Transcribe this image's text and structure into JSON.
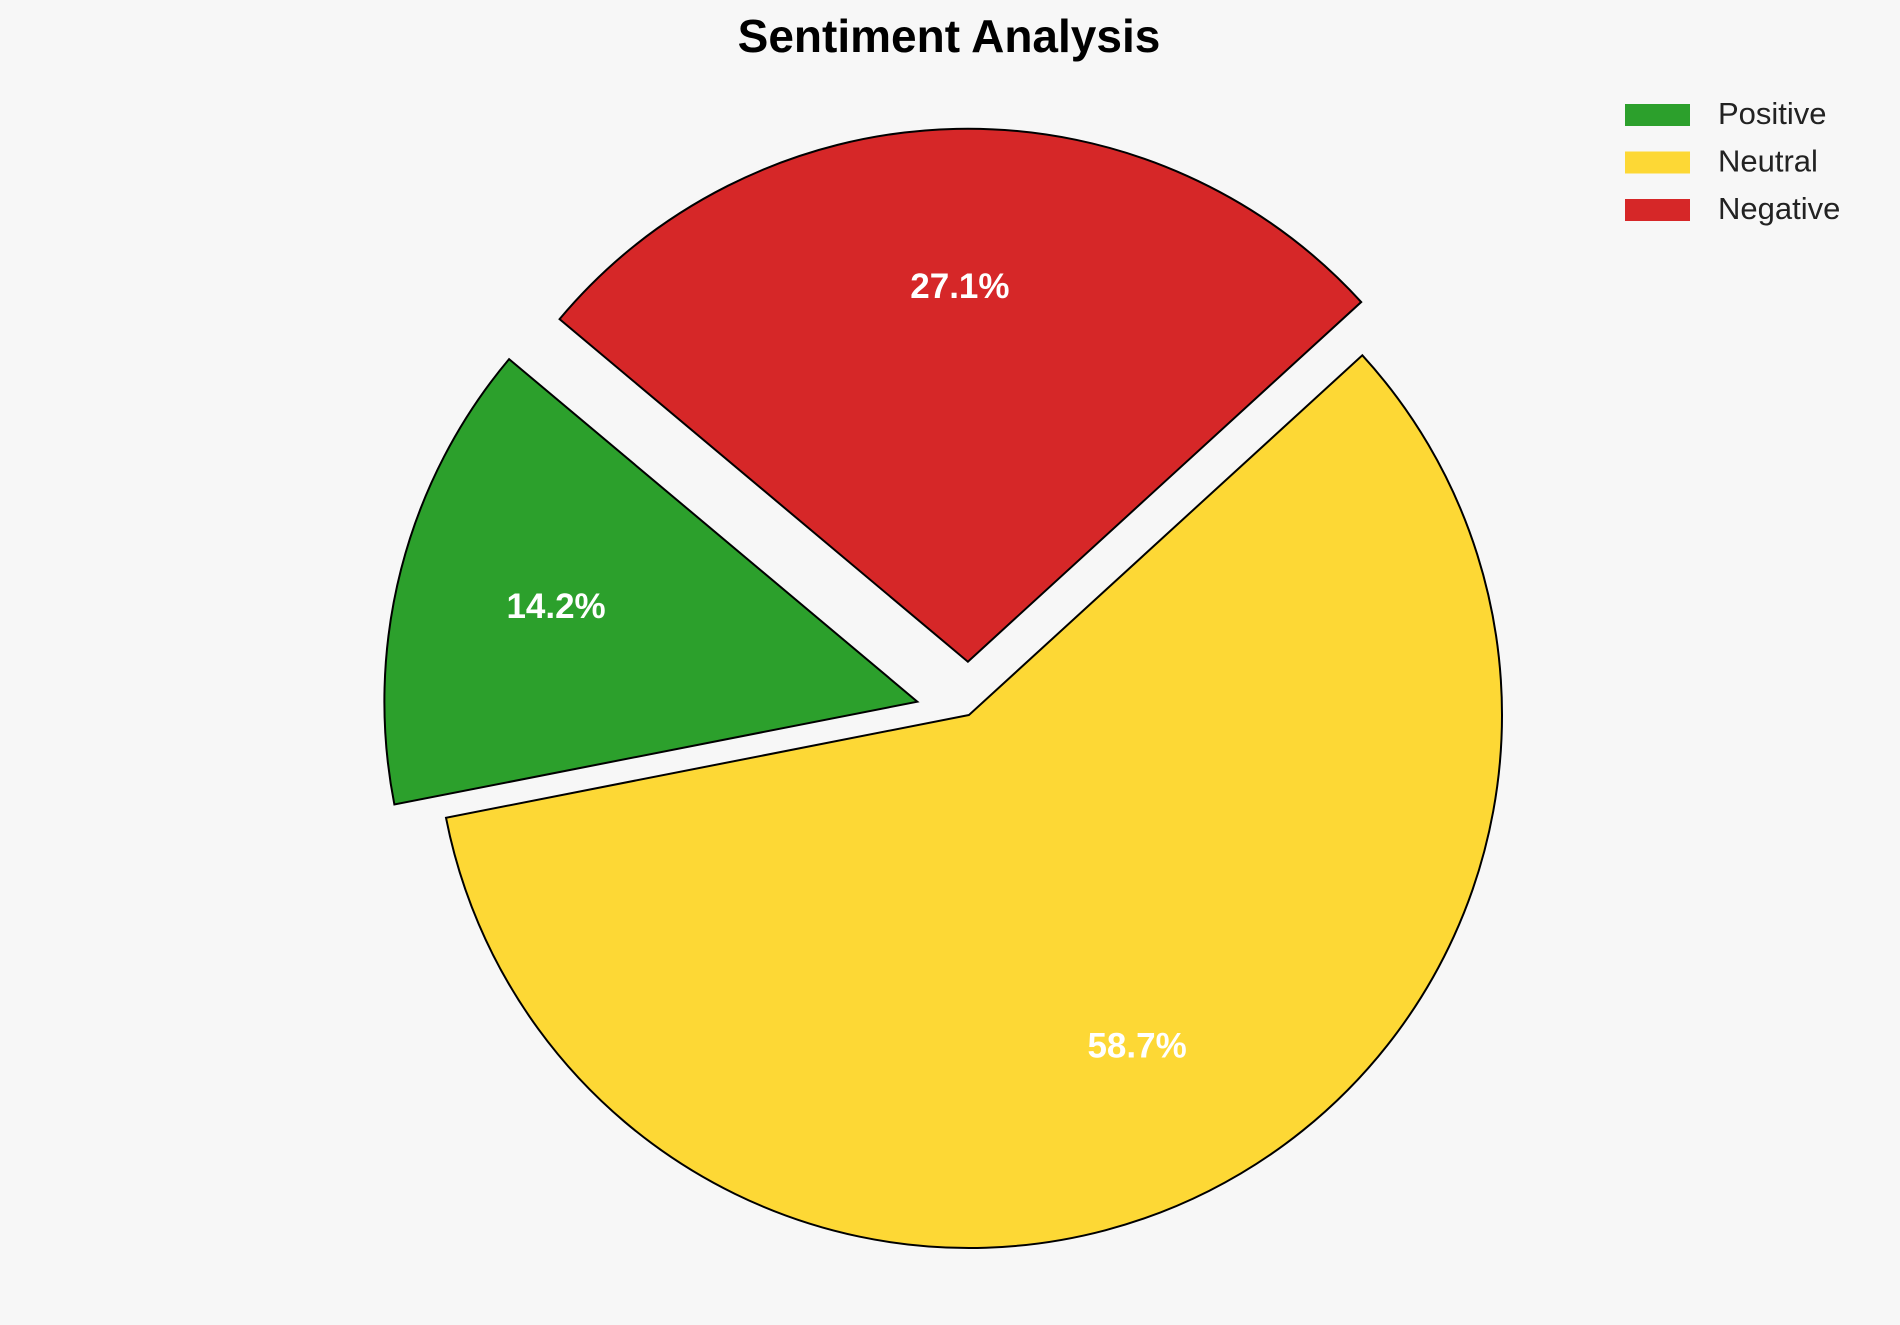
{
  "chart_data": {
    "type": "pie",
    "title": "Sentiment Analysis",
    "categories": [
      "Positive",
      "Neutral",
      "Negative"
    ],
    "values": [
      14.2,
      58.7,
      27.1
    ],
    "value_labels": [
      "14.2%",
      "58.7%",
      "27.1%"
    ],
    "colors": [
      "#2ca02c",
      "#fdd835",
      "#d62728"
    ],
    "legend": "upper right"
  }
}
